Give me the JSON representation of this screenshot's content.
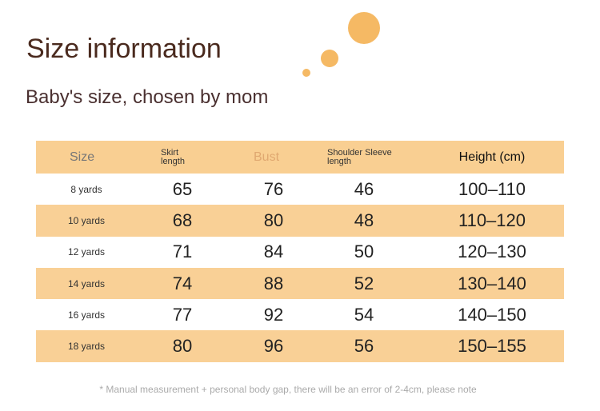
{
  "header": {
    "title": "Size information",
    "subtitle": "Baby's size, chosen by mom"
  },
  "table": {
    "columns": [
      "Size",
      "Skirt length",
      "Bust",
      "Shoulder Sleeve length",
      "Height (cm)"
    ],
    "rows": [
      [
        "8 yards",
        "65",
        "76",
        "46",
        "100–110"
      ],
      [
        "10 yards",
        "68",
        "80",
        "48",
        "110–120"
      ],
      [
        "12 yards",
        "71",
        "84",
        "50",
        "120–130"
      ],
      [
        "14 yards",
        "74",
        "88",
        "52",
        "130–140"
      ],
      [
        "16 yards",
        "77",
        "92",
        "54",
        "140–150"
      ],
      [
        "18 yards",
        "80",
        "96",
        "56",
        "150–155"
      ]
    ]
  },
  "footnote": "* Manual measurement + personal body gap, there will be an error of 2-4cm, please note"
}
